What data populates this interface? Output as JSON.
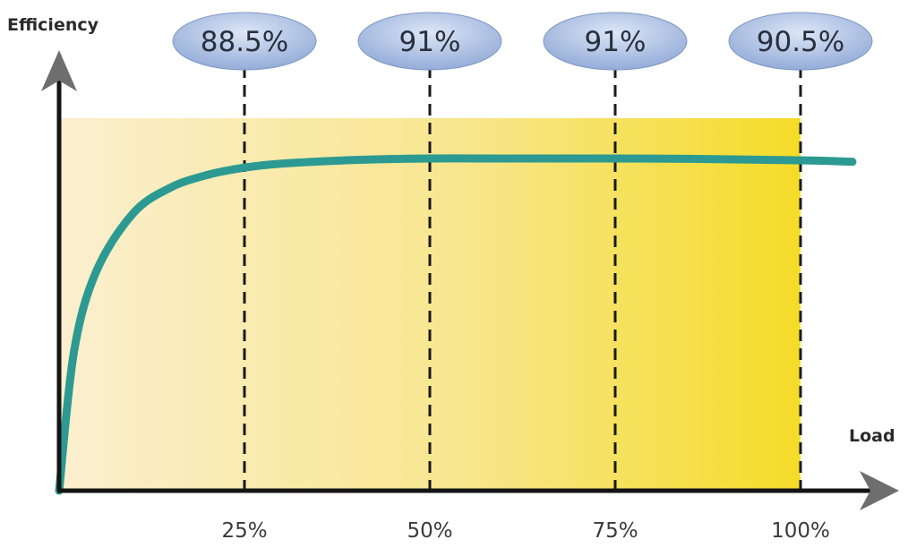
{
  "chart_data": {
    "type": "line",
    "title": "",
    "xlabel": "Load",
    "ylabel": "Efficiency",
    "x_ticks": [
      "25%",
      "50%",
      "75%",
      "100%"
    ],
    "callouts": [
      {
        "load": 25,
        "label": "88.5%"
      },
      {
        "load": 50,
        "label": "91%"
      },
      {
        "load": 75,
        "label": "91%"
      },
      {
        "load": 100,
        "label": "90.5%"
      }
    ],
    "series": [
      {
        "x": [
          0,
          2,
          5,
          10,
          15,
          20,
          25,
          30,
          40,
          50,
          60,
          75,
          85,
          100,
          107
        ],
        "y": [
          0,
          38,
          60,
          76,
          83,
          86.5,
          88.5,
          89.6,
          90.6,
          91,
          91,
          91,
          90.9,
          90.5,
          90.1
        ]
      }
    ],
    "xlim": [
      0,
      100
    ],
    "ylim": [
      0,
      100
    ],
    "grid": false,
    "colors": {
      "line": "#2c9a92",
      "bubble": "#9db4dc",
      "axis": "#141414",
      "arrow": "#6e6e6e",
      "fill_light": "#fbefcf",
      "fill_dark": "#f5dc28"
    }
  }
}
